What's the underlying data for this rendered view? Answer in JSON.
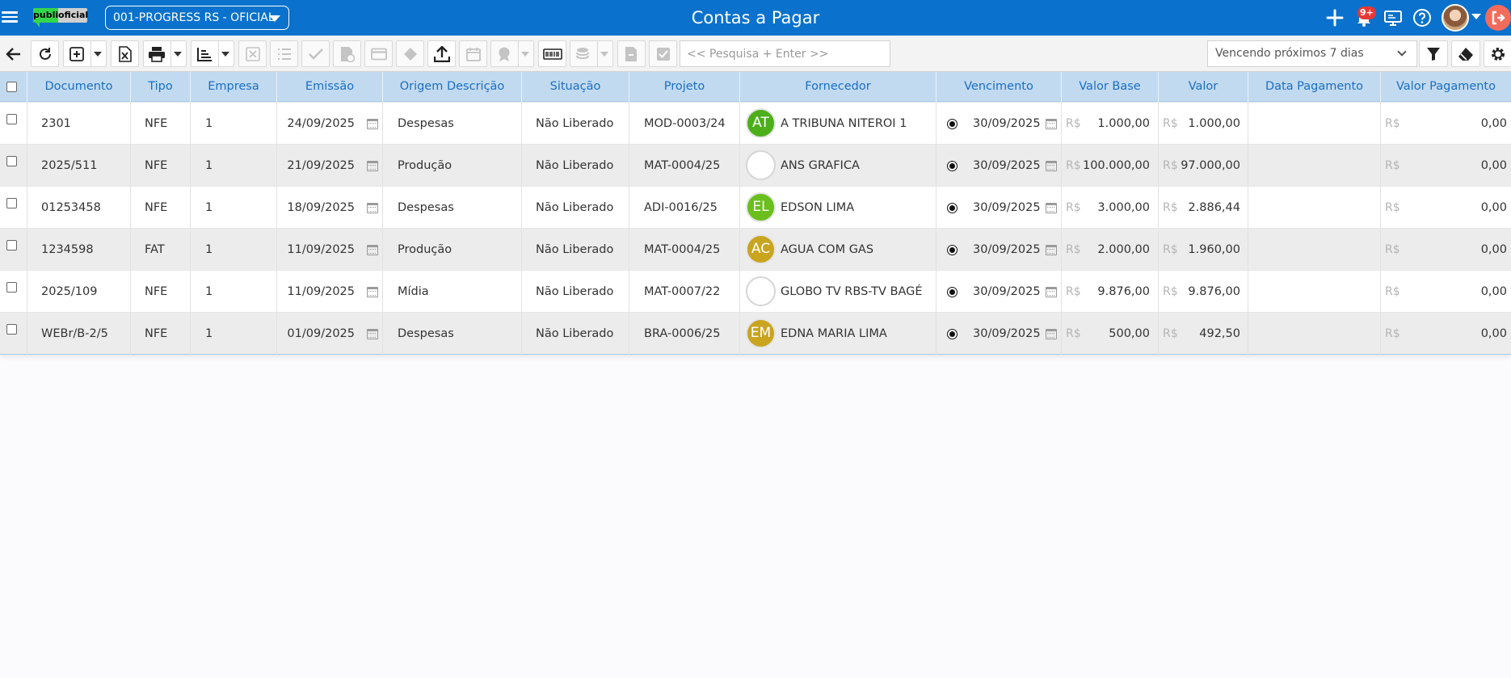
{
  "header": {
    "company": "001-PROGRESS RS - OFICIAL",
    "title": "Contas a Pagar",
    "logo_left": "publi",
    "logo_right": "oficial",
    "notification_badge": "9+"
  },
  "toolbar": {
    "search_placeholder": "<< Pesquisa + Enter >>",
    "filter_value": "Vencendo próximos 7 dias"
  },
  "table": {
    "columns": [
      "Documento",
      "Tipo",
      "Empresa",
      "Emissão",
      "Origem Descrição",
      "Situação",
      "Projeto",
      "Fornecedor",
      "Vencimento",
      "Valor Base",
      "Valor",
      "Data Pagamento",
      "Valor Pagamento"
    ],
    "currency": "R$",
    "rows": [
      {
        "documento": "2301",
        "tipo": "NFE",
        "empresa": "1",
        "emissao": "24/09/2025",
        "origem": "Despesas",
        "situacao": "Não Liberado",
        "projeto": "MOD-0003/24",
        "fornecedor": "A TRIBUNA NITEROI 1",
        "avatar": "AT",
        "avatar_color": "#4caf1a",
        "vencimento": "30/09/2025",
        "valor_base": "1.000,00",
        "valor": "1.000,00",
        "data_pagamento": "",
        "valor_pagamento": "0,00"
      },
      {
        "documento": "2025/511",
        "tipo": "NFE",
        "empresa": "1",
        "emissao": "21/09/2025",
        "origem": "Produção",
        "situacao": "Não Liberado",
        "projeto": "MAT-0004/25",
        "fornecedor": "ANS GRAFICA",
        "avatar": "",
        "avatar_color": "#ffffff",
        "vencimento": "30/09/2025",
        "valor_base": "100.000,00",
        "valor": "97.000,00",
        "data_pagamento": "",
        "valor_pagamento": "0,00"
      },
      {
        "documento": "01253458",
        "tipo": "NFE",
        "empresa": "1",
        "emissao": "18/09/2025",
        "origem": "Despesas",
        "situacao": "Não Liberado",
        "projeto": "ADI-0016/25",
        "fornecedor": "EDSON LIMA",
        "avatar": "EL",
        "avatar_color": "#6abf1c",
        "vencimento": "30/09/2025",
        "valor_base": "3.000,00",
        "valor": "2.886,44",
        "data_pagamento": "",
        "valor_pagamento": "0,00"
      },
      {
        "documento": "1234598",
        "tipo": "FAT",
        "empresa": "1",
        "emissao": "11/09/2025",
        "origem": "Produção",
        "situacao": "Não Liberado",
        "projeto": "MAT-0004/25",
        "fornecedor": "AGUA COM GAS",
        "avatar": "AC",
        "avatar_color": "#c9a41f",
        "vencimento": "30/09/2025",
        "valor_base": "2.000,00",
        "valor": "1.960,00",
        "data_pagamento": "",
        "valor_pagamento": "0,00"
      },
      {
        "documento": "2025/109",
        "tipo": "NFE",
        "empresa": "1",
        "emissao": "11/09/2025",
        "origem": "Mídia",
        "situacao": "Não Liberado",
        "projeto": "MAT-0007/22",
        "fornecedor": "GLOBO TV RBS-TV BAGÉ",
        "avatar": "",
        "avatar_color": "#ffffff",
        "vencimento": "30/09/2025",
        "valor_base": "9.876,00",
        "valor": "9.876,00",
        "data_pagamento": "",
        "valor_pagamento": "0,00"
      },
      {
        "documento": "WEBr/B-2/5",
        "tipo": "NFE",
        "empresa": "1",
        "emissao": "01/09/2025",
        "origem": "Despesas",
        "situacao": "Não Liberado",
        "projeto": "BRA-0006/25",
        "fornecedor": "EDNA MARIA LIMA",
        "avatar": "EM",
        "avatar_color": "#c9a41f",
        "vencimento": "30/09/2025",
        "valor_base": "500,00",
        "valor": "492,50",
        "data_pagamento": "",
        "valor_pagamento": "0,00"
      }
    ]
  }
}
